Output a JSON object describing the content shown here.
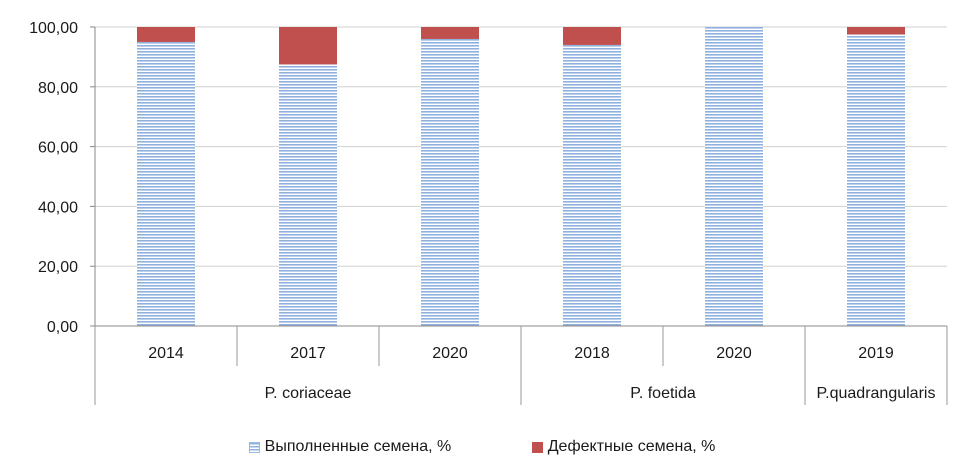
{
  "chart_data": {
    "type": "bar",
    "stacked": true,
    "categories": [
      "2014",
      "2017",
      "2020",
      "2018",
      "2020",
      "2019"
    ],
    "groups": [
      {
        "label": "P. coriaceae",
        "count": 3
      },
      {
        "label": "P. foetida",
        "count": 2
      },
      {
        "label": "P.quadrangularis",
        "count": 1
      }
    ],
    "series": [
      {
        "name": "Выполненные семена, %",
        "values": [
          95,
          87.5,
          96,
          94,
          100,
          97.5
        ],
        "color": "#8fb1df",
        "pattern": "horizontal-lines"
      },
      {
        "name": "Дефектные семена, %",
        "values": [
          5,
          12.5,
          4,
          6,
          0,
          2.5
        ],
        "color": "#c0504d"
      }
    ],
    "yticks": [
      "0,00",
      "20,00",
      "40,00",
      "60,00",
      "80,00",
      "100,00"
    ],
    "ylim": [
      0,
      100
    ],
    "grid": true,
    "legend_position": "bottom"
  }
}
